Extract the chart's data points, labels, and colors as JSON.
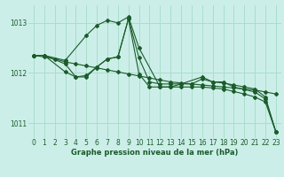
{
  "title": "Graphe pression niveau de la mer (hPa)",
  "bg_color": "#cceee8",
  "grid_color": "#aaddcc",
  "line_color": "#1a5c2a",
  "xlim": [
    -0.5,
    23.5
  ],
  "ylim": [
    1010.7,
    1013.35
  ],
  "yticks": [
    1011,
    1012,
    1013
  ],
  "xticks": [
    0,
    1,
    2,
    3,
    4,
    5,
    6,
    7,
    8,
    9,
    10,
    11,
    12,
    13,
    14,
    15,
    16,
    17,
    18,
    19,
    20,
    21,
    22,
    23
  ],
  "series": [
    {
      "x": [
        0,
        1,
        3,
        5,
        6,
        7,
        8,
        9,
        10,
        12,
        13,
        14,
        16,
        17,
        18,
        19,
        21,
        22,
        23
      ],
      "y": [
        1012.35,
        1012.35,
        1012.25,
        1012.75,
        1012.95,
        1013.05,
        1013.0,
        1013.12,
        1012.5,
        1011.72,
        1011.72,
        1011.78,
        1011.92,
        1011.82,
        1011.82,
        1011.72,
        1011.62,
        1011.48,
        1010.82
      ]
    },
    {
      "x": [
        0,
        1,
        3,
        4,
        5,
        6,
        7,
        8,
        9,
        10,
        11,
        12,
        13,
        14,
        15,
        16,
        17,
        18,
        19,
        20,
        21,
        22,
        23
      ],
      "y": [
        1012.35,
        1012.35,
        1012.18,
        1011.92,
        1011.95,
        1012.12,
        1012.28,
        1012.32,
        1013.08,
        1012.3,
        1011.82,
        1011.78,
        1011.78,
        1011.78,
        1011.78,
        1011.88,
        1011.82,
        1011.8,
        1011.76,
        1011.72,
        1011.68,
        1011.52,
        1010.82
      ]
    },
    {
      "x": [
        0,
        1,
        2,
        3,
        4,
        5,
        6,
        7,
        8,
        9,
        10,
        11,
        12,
        13,
        14,
        15,
        16,
        17,
        18,
        19,
        20,
        21,
        22,
        23
      ],
      "y": [
        1012.35,
        1012.32,
        1012.28,
        1012.22,
        1012.18,
        1012.14,
        1012.1,
        1012.06,
        1012.02,
        1011.98,
        1011.94,
        1011.9,
        1011.86,
        1011.82,
        1011.8,
        1011.78,
        1011.76,
        1011.74,
        1011.72,
        1011.7,
        1011.68,
        1011.66,
        1011.62,
        1011.58
      ]
    },
    {
      "x": [
        0,
        1,
        3,
        4,
        5,
        6,
        7,
        8,
        9,
        10,
        11,
        12,
        13,
        14,
        15,
        16,
        17,
        18,
        19,
        20,
        21,
        22,
        23
      ],
      "y": [
        1012.35,
        1012.35,
        1012.02,
        1011.92,
        1011.92,
        1012.12,
        1012.28,
        1012.32,
        1013.08,
        1011.98,
        1011.72,
        1011.72,
        1011.72,
        1011.72,
        1011.72,
        1011.72,
        1011.7,
        1011.68,
        1011.63,
        1011.58,
        1011.52,
        1011.42,
        1010.82
      ]
    }
  ]
}
